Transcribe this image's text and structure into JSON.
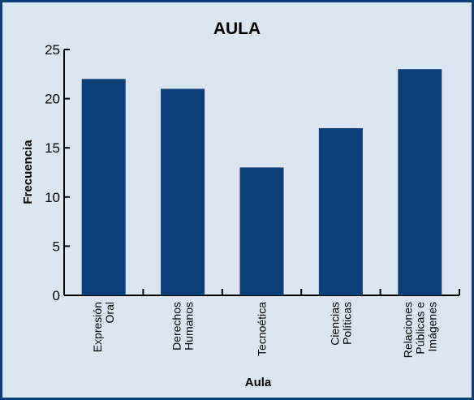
{
  "chart_data": {
    "type": "bar",
    "title": "AULA",
    "xlabel": "Aula",
    "ylabel": "Frecuencia",
    "categories": [
      [
        "Expresión",
        "Oral"
      ],
      [
        "Derechos",
        "Humanos"
      ],
      [
        "Tecnoética"
      ],
      [
        "Ciencias",
        "Políticas"
      ],
      [
        "Relaciones",
        "Públicas e",
        "Imágenes"
      ]
    ],
    "values": [
      22,
      21,
      13,
      17,
      23
    ],
    "ylim": [
      0,
      25
    ],
    "yticks": [
      0,
      5,
      10,
      15,
      20,
      25
    ],
    "grid": false,
    "colors": {
      "bar": "#0b3f78",
      "background": "#dce6f0",
      "border": "#0b3f78"
    }
  }
}
